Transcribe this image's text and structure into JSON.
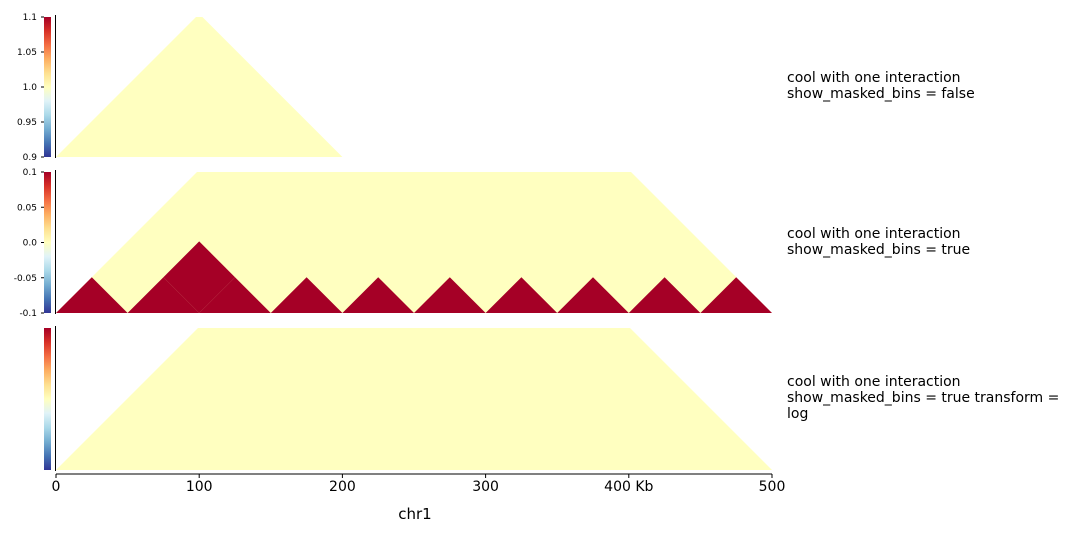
{
  "chart_data": {
    "type": "heatmap",
    "x_axis": {
      "label": "chr1",
      "range": [
        0,
        500
      ],
      "ticks": [
        "0",
        "100",
        "200",
        "300",
        "400 Kb",
        "500"
      ],
      "tick_values": [
        0,
        100,
        200,
        300,
        400,
        500
      ]
    },
    "colormap": [
      "#313695",
      "#4575b4",
      "#74add1",
      "#abd9e9",
      "#e0f3f8",
      "#ffffbf",
      "#fee090",
      "#fdae61",
      "#f46d43",
      "#d73027",
      "#a50026"
    ],
    "colors": {
      "background": "#ffffc0",
      "interaction": "#a50026"
    },
    "tracks": [
      {
        "title": "cool with one interaction\nshow_masked_bins = false",
        "colorbar": {
          "range": [
            0.9,
            1.1
          ],
          "ticks": [
            "1.1",
            "1.05",
            "1.0",
            "0.95",
            "0.9"
          ],
          "tick_values": [
            1.1,
            1.05,
            1.0,
            0.95,
            0.9
          ]
        },
        "data_extent_kb": [
          0,
          200
        ],
        "interactions": []
      },
      {
        "title": "cool with one interaction\nshow_masked_bins = true",
        "colorbar": {
          "range": [
            -0.1,
            0.1
          ],
          "ticks": [
            "0.1",
            "0.05",
            "0.0",
            "-0.05",
            "-0.1"
          ],
          "tick_values": [
            0.1,
            0.05,
            0.0,
            -0.05,
            -0.1
          ]
        },
        "data_extent_kb": [
          0,
          500
        ],
        "interactions": [
          {
            "bin1_kb": [
              50,
              100
            ],
            "bin2_kb": [
              100,
              150
            ],
            "value": 1
          }
        ],
        "masked_bins_kb": [
          [
            0,
            50
          ],
          [
            50,
            100
          ],
          [
            100,
            150
          ],
          [
            150,
            200
          ],
          [
            200,
            250
          ],
          [
            250,
            300
          ],
          [
            300,
            350
          ],
          [
            350,
            400
          ],
          [
            400,
            450
          ],
          [
            450,
            500
          ]
        ]
      },
      {
        "title": "cool with one interaction\nshow_masked_bins = true transform =\nlog",
        "colorbar": {
          "range": [
            null,
            null
          ],
          "ticks": [],
          "tick_values": []
        },
        "data_extent_kb": [
          0,
          500
        ],
        "interactions": []
      }
    ]
  }
}
